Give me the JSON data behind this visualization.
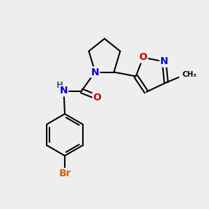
{
  "bg_color": "#eeeeee",
  "atom_colors": {
    "C": "#000000",
    "N": "#0000cc",
    "O": "#cc0000",
    "Br": "#cc6600",
    "H": "#336666"
  },
  "bond_color": "#000000",
  "bond_width": 1.5,
  "font_size_atom": 10,
  "font_size_small": 8.5
}
